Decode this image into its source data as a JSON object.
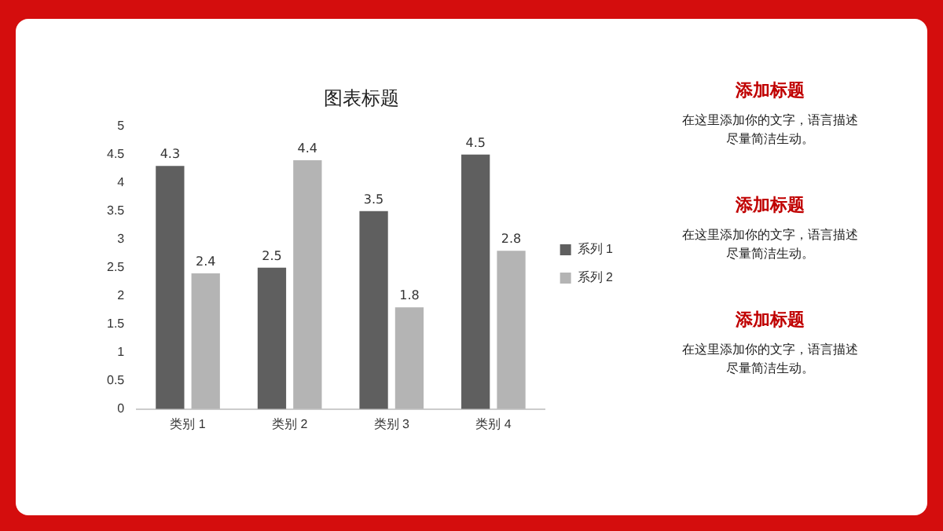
{
  "chart_data": {
    "type": "bar",
    "title": "图表标题",
    "categories": [
      "类别 1",
      "类别 2",
      "类别 3",
      "类别 4"
    ],
    "series": [
      {
        "name": "系列 1",
        "color": "#5f5f5f",
        "values": [
          4.3,
          2.5,
          3.5,
          4.5
        ]
      },
      {
        "name": "系列 2",
        "color": "#b4b4b4",
        "values": [
          2.4,
          4.4,
          1.8,
          2.8
        ]
      }
    ],
    "ylim": [
      0,
      5
    ],
    "yticks": [
      0,
      0.5,
      1,
      1.5,
      2,
      2.5,
      3,
      3.5,
      4,
      4.5,
      5
    ],
    "grid": false,
    "legend": "right",
    "data_labels": true,
    "annotations": [
      "添加标题",
      "在这里添加你的文字，语言描述尽量简洁生动。",
      "添加标题",
      "在这里添加你的文字，语言描述尽量简洁生动。",
      "添加标题",
      "在这里添加你的文字，语言描述尽量简洁生动。"
    ]
  }
}
